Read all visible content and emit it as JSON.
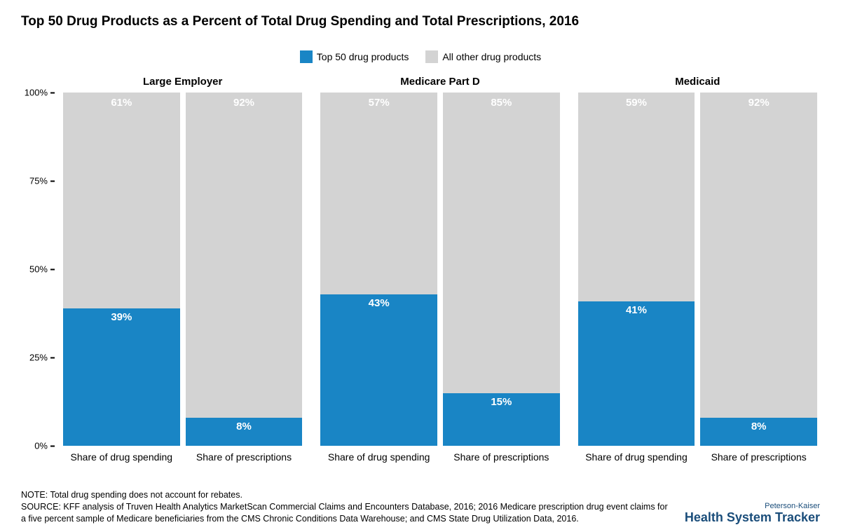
{
  "title": "Top 50 Drug Products as a Percent of Total Drug Spending and Total Prescriptions, 2016",
  "legend": {
    "top50": {
      "label": "Top 50 drug products",
      "color": "#1985c5"
    },
    "other": {
      "label": "All other drug products",
      "color": "#d3d3d3"
    }
  },
  "chart": {
    "type": "stacked-bar-panels",
    "ylim": [
      0,
      100
    ],
    "yticks": [
      0,
      25,
      50,
      75,
      100
    ],
    "ytick_suffix": "%",
    "value_suffix": "%",
    "label_fontsize": 14,
    "value_fontsize": 15,
    "value_color": "#ffffff",
    "panel_title_fontsize": 15,
    "background_color": "#ffffff",
    "panels": [
      {
        "title": "Large Employer",
        "bars": [
          {
            "xlabel": "Share of drug spending",
            "top50": 39,
            "other": 61
          },
          {
            "xlabel": "Share of prescriptions",
            "top50": 8,
            "other": 92
          }
        ]
      },
      {
        "title": "Medicare Part D",
        "bars": [
          {
            "xlabel": "Share of drug spending",
            "top50": 43,
            "other": 57
          },
          {
            "xlabel": "Share of prescriptions",
            "top50": 15,
            "other": 85
          }
        ]
      },
      {
        "title": "Medicaid",
        "bars": [
          {
            "xlabel": "Share of drug spending",
            "top50": 41,
            "other": 59
          },
          {
            "xlabel": "Share of prescriptions",
            "top50": 8,
            "other": 92
          }
        ]
      }
    ]
  },
  "footnote": {
    "note": "NOTE: Total drug spending does not account for rebates.",
    "source": "SOURCE: KFF analysis of Truven Health Analytics MarketScan Commercial Claims and Encounters Database, 2016; 2016 Medicare prescription drug event claims for a five percent sample of Medicare beneficiaries from the CMS Chronic Conditions Data Warehouse; and CMS State Drug Utilization Data, 2016."
  },
  "brand": {
    "line1": "Peterson-Kaiser",
    "line2": "Health System Tracker",
    "color": "#1a4d7a"
  }
}
